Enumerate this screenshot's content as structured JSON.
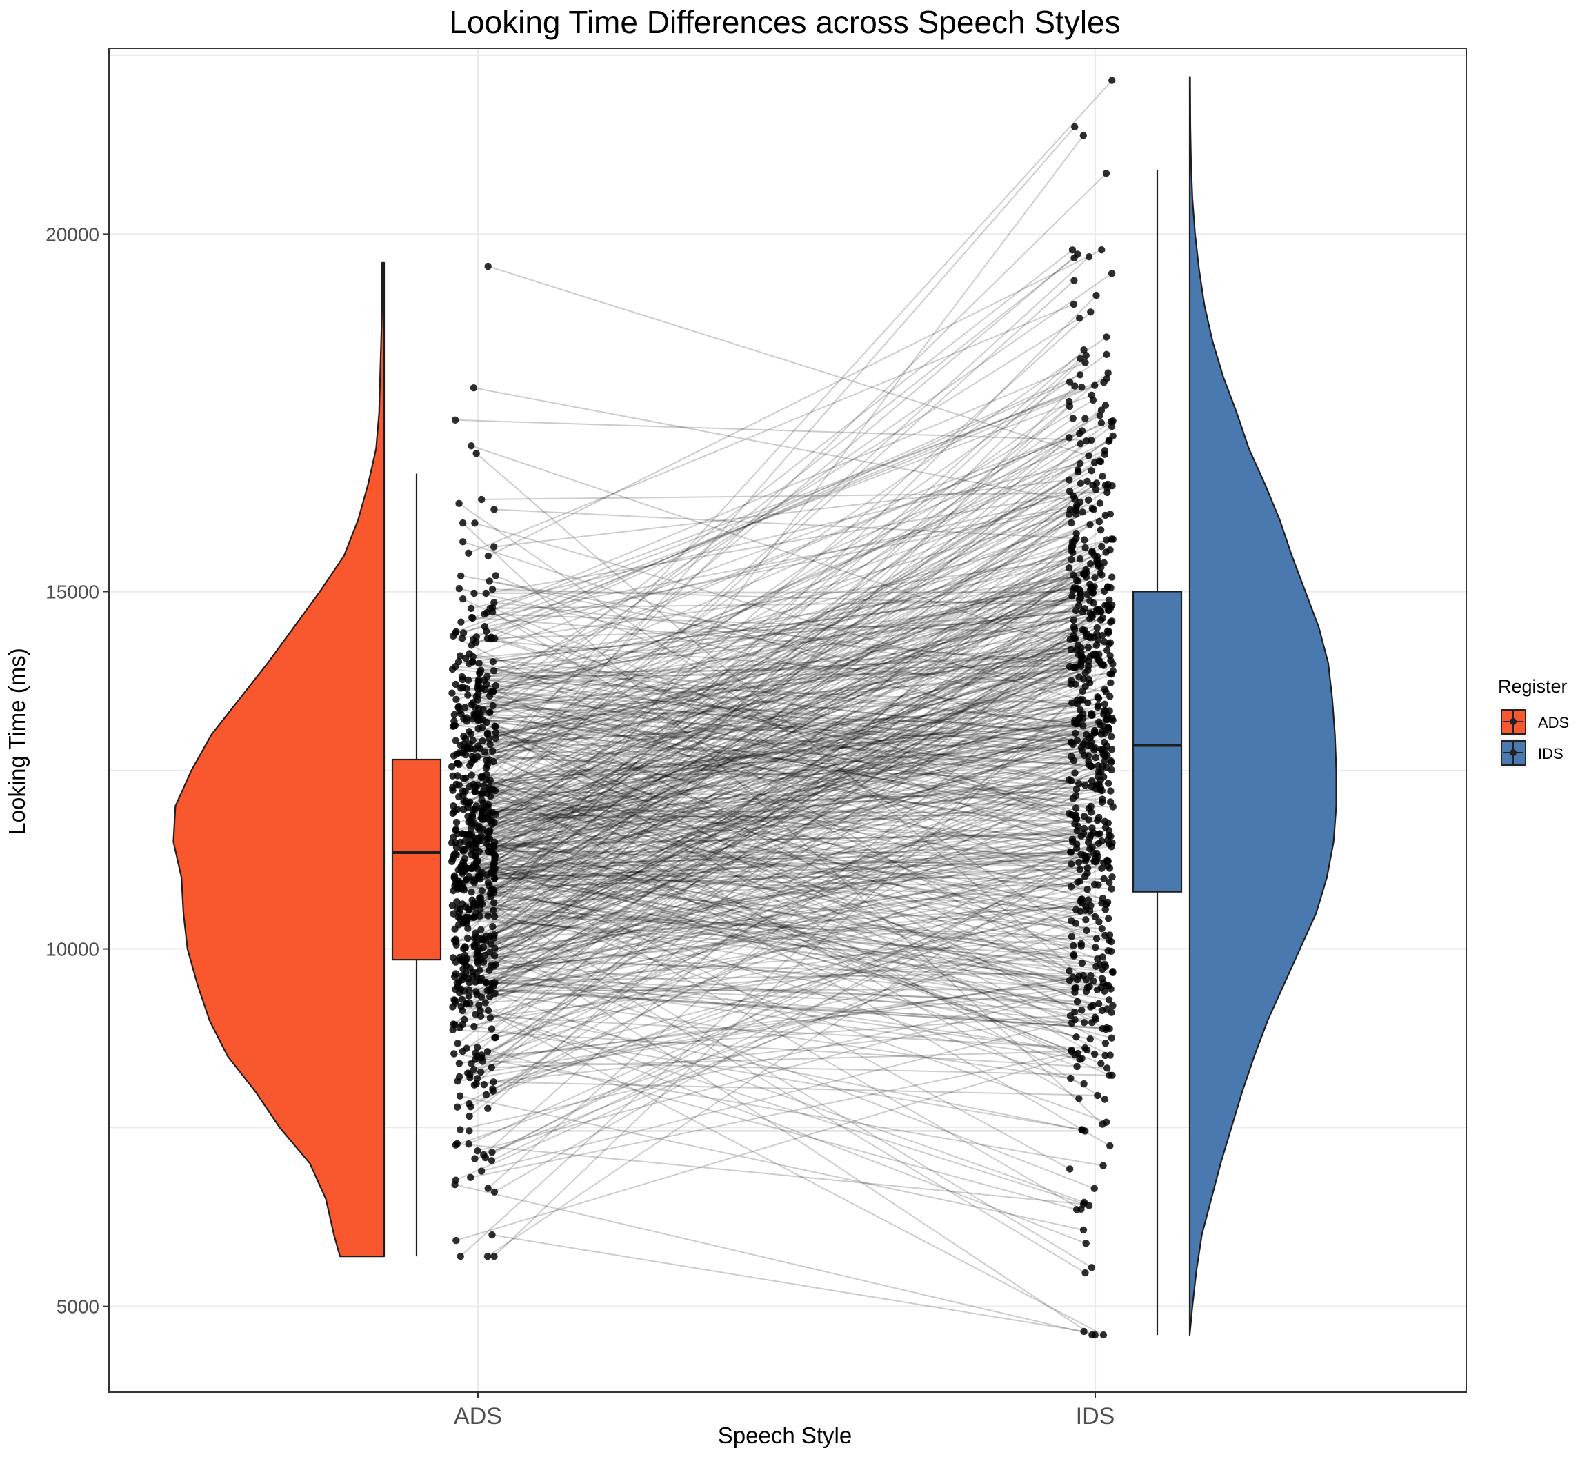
{
  "chart_data": {
    "type": "raincloud",
    "title": "Looking Time Differences across Speech Styles",
    "xlabel": "Speech Style",
    "ylabel": "Looking Time (ms)",
    "categories": [
      "ADS",
      "IDS"
    ],
    "y_ticks": [
      5000,
      10000,
      15000,
      20000
    ],
    "ylim": [
      3800,
      22600
    ],
    "grid": true,
    "legend": {
      "title": "Register",
      "position": "right",
      "entries": [
        {
          "label": "ADS",
          "color": "#f9582f"
        },
        {
          "label": "IDS",
          "color": "#4a79b0"
        }
      ]
    },
    "boxplots": [
      {
        "name": "ADS",
        "min": 5700,
        "q1": 9850,
        "median": 11350,
        "q3": 12650,
        "max": 16650
      },
      {
        "name": "IDS",
        "min": 4600,
        "q1": 10800,
        "median": 12850,
        "q3": 15000,
        "max": 20900
      }
    ],
    "density": [
      {
        "name": "ADS",
        "min": 5700,
        "max": 19600,
        "profile": [
          [
            5700,
            0.22
          ],
          [
            6000,
            0.25
          ],
          [
            6500,
            0.29
          ],
          [
            7000,
            0.37
          ],
          [
            7500,
            0.52
          ],
          [
            8000,
            0.64
          ],
          [
            8500,
            0.78
          ],
          [
            9000,
            0.87
          ],
          [
            9500,
            0.93
          ],
          [
            10000,
            0.98
          ],
          [
            10500,
            1.0
          ],
          [
            11000,
            1.01
          ],
          [
            11500,
            1.05
          ],
          [
            12000,
            1.04
          ],
          [
            12500,
            0.96
          ],
          [
            13000,
            0.86
          ],
          [
            13500,
            0.72
          ],
          [
            14000,
            0.58
          ],
          [
            14500,
            0.45
          ],
          [
            15000,
            0.32
          ],
          [
            15500,
            0.2
          ],
          [
            16000,
            0.13
          ],
          [
            16500,
            0.08
          ],
          [
            17000,
            0.04
          ],
          [
            17500,
            0.025
          ],
          [
            18000,
            0.02
          ],
          [
            18500,
            0.015
          ],
          [
            19000,
            0.01
          ],
          [
            19600,
            0.01
          ]
        ]
      },
      {
        "name": "IDS",
        "min": 4600,
        "max": 22200,
        "profile": [
          [
            4600,
            0.0
          ],
          [
            5000,
            0.02
          ],
          [
            5500,
            0.05
          ],
          [
            6000,
            0.09
          ],
          [
            6500,
            0.16
          ],
          [
            7000,
            0.23
          ],
          [
            7500,
            0.31
          ],
          [
            8000,
            0.39
          ],
          [
            8500,
            0.48
          ],
          [
            9000,
            0.58
          ],
          [
            9500,
            0.7
          ],
          [
            10000,
            0.82
          ],
          [
            10500,
            0.94
          ],
          [
            11000,
            1.02
          ],
          [
            11500,
            1.07
          ],
          [
            12000,
            1.09
          ],
          [
            12500,
            1.09
          ],
          [
            13000,
            1.08
          ],
          [
            13500,
            1.06
          ],
          [
            14000,
            1.03
          ],
          [
            14500,
            0.96
          ],
          [
            15000,
            0.86
          ],
          [
            15500,
            0.76
          ],
          [
            16000,
            0.67
          ],
          [
            16500,
            0.56
          ],
          [
            17000,
            0.44
          ],
          [
            17500,
            0.35
          ],
          [
            18000,
            0.25
          ],
          [
            18500,
            0.17
          ],
          [
            19000,
            0.11
          ],
          [
            19500,
            0.07
          ],
          [
            20000,
            0.04
          ],
          [
            20500,
            0.02
          ],
          [
            21000,
            0.01
          ],
          [
            21500,
            0.005
          ],
          [
            22200,
            0.003
          ]
        ]
      }
    ],
    "pairs_note_free": true,
    "subjects": 600,
    "paired_lines_color": "#000000",
    "points_color": "#000000"
  }
}
